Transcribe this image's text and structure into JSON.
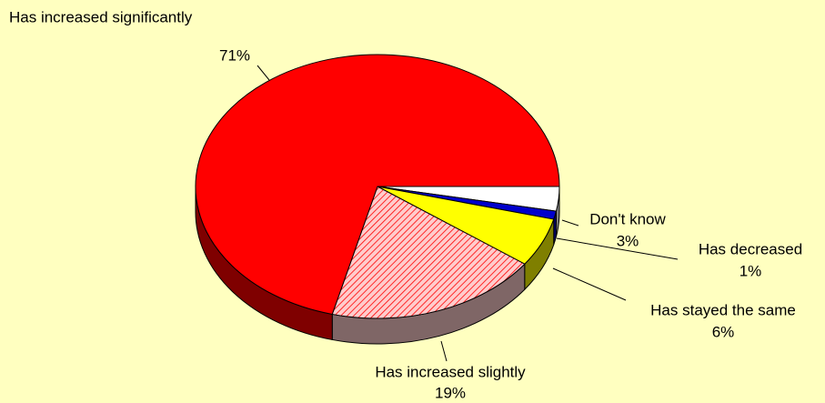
{
  "chart_data": {
    "type": "pie3d",
    "categories": [
      "Don't know",
      "Has decreased",
      "Has stayed the same",
      "Has increased slightly",
      "Has increased significantly"
    ],
    "values": [
      3,
      1,
      6,
      19,
      71
    ],
    "value_labels": [
      "3%",
      "1%",
      "6%",
      "19%",
      "71%"
    ],
    "colors": [
      "#ffffff",
      "#0000cc",
      "#ffff00",
      "#ffcccc",
      "#ff0000"
    ],
    "patterns": [
      null,
      null,
      null,
      "diagonal",
      null
    ]
  }
}
